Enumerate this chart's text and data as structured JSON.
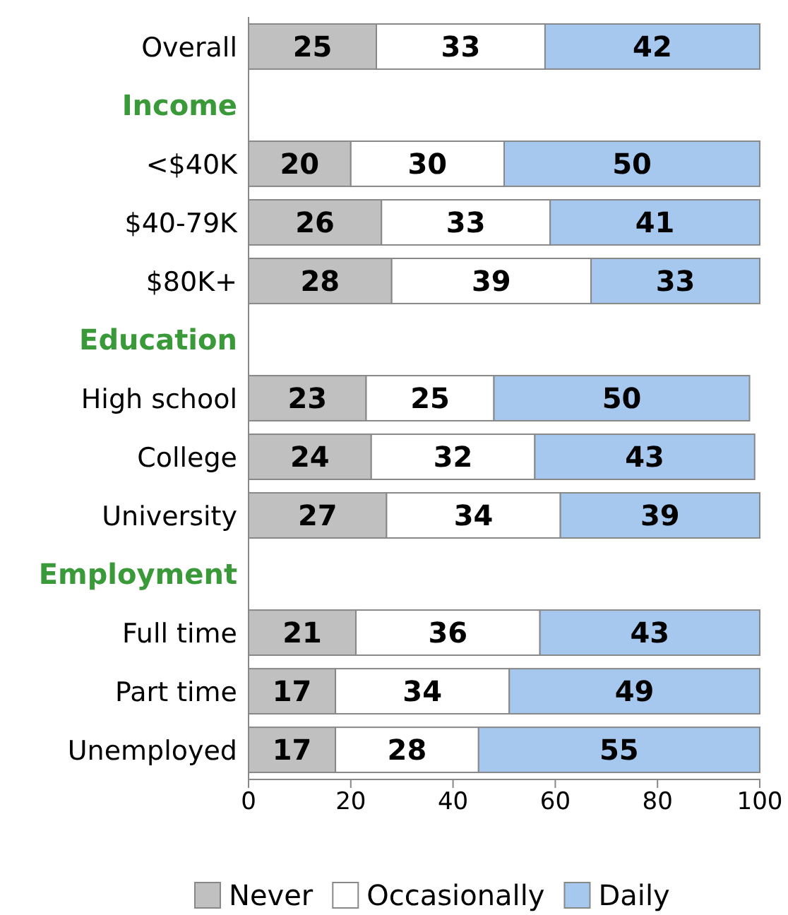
{
  "chart_data": {
    "type": "bar",
    "orientation": "horizontal",
    "stacked": true,
    "data_labels": true,
    "legend": "bottom",
    "grid": false,
    "categories": [
      "Overall",
      "Income",
      "<$40K",
      "$40-79K",
      "$80K+",
      "Education",
      "High school",
      "College",
      "University",
      "Employment",
      "Full time",
      "Part time",
      "Unemployed"
    ],
    "xlim": [
      0,
      100
    ],
    "xticks": [
      0,
      20,
      40,
      60,
      80,
      100
    ],
    "series": [
      {
        "name": "Never",
        "color": "#c0c0c0",
        "values": [
          25,
          null,
          20,
          26,
          28,
          null,
          23,
          24,
          27,
          null,
          21,
          17,
          17
        ]
      },
      {
        "name": "Occasionally",
        "color": "#ffffff",
        "values": [
          33,
          null,
          30,
          33,
          39,
          null,
          25,
          32,
          34,
          null,
          36,
          34,
          28
        ]
      },
      {
        "name": "Daily",
        "color": "#a6c8ee",
        "values": [
          42,
          null,
          50,
          41,
          33,
          null,
          50,
          43,
          39,
          null,
          43,
          49,
          55
        ]
      }
    ]
  }
}
